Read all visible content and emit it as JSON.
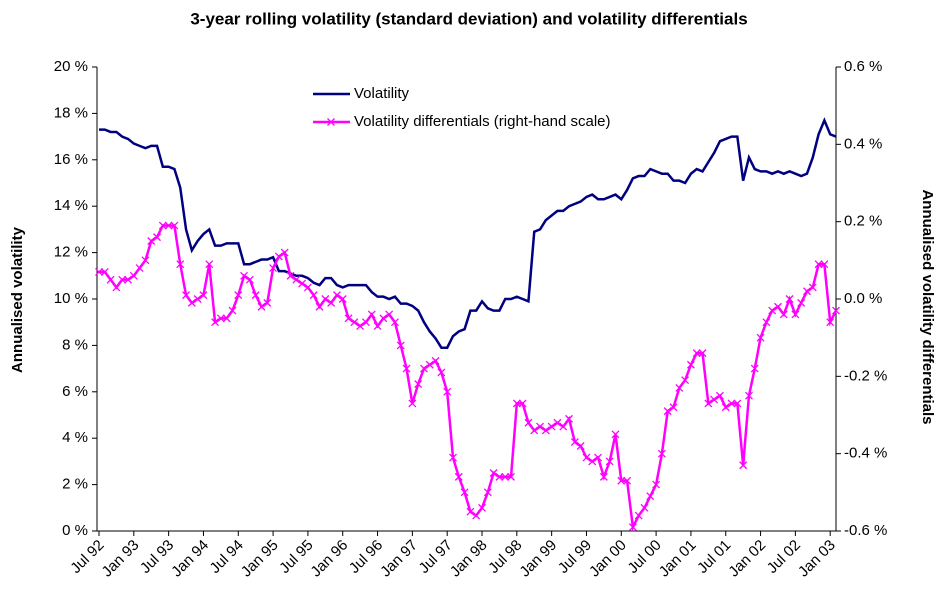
{
  "chart_data": {
    "type": "line",
    "title": "3-year rolling volatility (standard deviation) and volatility differentials",
    "y_label": "Annualised volatility",
    "y2_label": "Annualised volatility differentials",
    "categories": [
      "Jul 92",
      null,
      null,
      null,
      null,
      null,
      "Jan 93",
      null,
      null,
      null,
      null,
      null,
      "Jul 93",
      null,
      null,
      null,
      null,
      null,
      "Jan 94",
      null,
      null,
      null,
      null,
      null,
      "Jul 94",
      null,
      null,
      null,
      null,
      null,
      "Jan 95",
      null,
      null,
      null,
      null,
      null,
      "Jul 95",
      null,
      null,
      null,
      null,
      null,
      "Jan 96",
      null,
      null,
      null,
      null,
      null,
      "Jul 96",
      null,
      null,
      null,
      null,
      null,
      "Jan 97",
      null,
      null,
      null,
      null,
      null,
      "Jul 97",
      null,
      null,
      null,
      null,
      null,
      "Jan 98",
      null,
      null,
      null,
      null,
      null,
      "Jul 98",
      null,
      null,
      null,
      null,
      null,
      "Jan 99",
      null,
      null,
      null,
      null,
      null,
      "Jul 99",
      null,
      null,
      null,
      null,
      null,
      "Jan 00",
      null,
      null,
      null,
      null,
      null,
      "Jul 00",
      null,
      null,
      null,
      null,
      null,
      "Jan 01",
      null,
      null,
      null,
      null,
      null,
      "Jul 01",
      null,
      null,
      null,
      null,
      null,
      "Jan 02",
      null,
      null,
      null,
      null,
      null,
      "Jul 02",
      null,
      null,
      null,
      null,
      null,
      "Jan 03",
      null
    ],
    "series": [
      {
        "name": "Volatility",
        "color": "#000080",
        "values": [
          17.3,
          17.3,
          17.2,
          17.2,
          17.0,
          16.9,
          16.7,
          16.6,
          16.5,
          16.6,
          16.6,
          15.7,
          15.7,
          15.6,
          14.8,
          13.0,
          12.1,
          12.5,
          12.8,
          13.0,
          12.3,
          12.3,
          12.4,
          12.4,
          12.4,
          11.5,
          11.5,
          11.6,
          11.7,
          11.7,
          11.8,
          11.2,
          11.2,
          11.1,
          11.0,
          11.0,
          10.9,
          10.7,
          10.6,
          10.9,
          10.9,
          10.6,
          10.5,
          10.6,
          10.6,
          10.6,
          10.6,
          10.3,
          10.1,
          10.1,
          10.0,
          10.1,
          9.8,
          9.8,
          9.7,
          9.5,
          9.0,
          8.6,
          8.3,
          7.9,
          7.9,
          8.4,
          8.6,
          8.7,
          9.5,
          9.5,
          9.9,
          9.6,
          9.5,
          9.5,
          10.0,
          10.0,
          10.1,
          10.0,
          9.9,
          12.9,
          13.0,
          13.4,
          13.6,
          13.8,
          13.8,
          14.0,
          14.1,
          14.2,
          14.4,
          14.5,
          14.3,
          14.3,
          14.4,
          14.5,
          14.3,
          14.7,
          15.2,
          15.3,
          15.3,
          15.6,
          15.5,
          15.4,
          15.4,
          15.1,
          15.1,
          15.0,
          15.4,
          15.6,
          15.5,
          15.9,
          16.3,
          16.8,
          16.9,
          17.0,
          17.0,
          15.1,
          16.1,
          15.6,
          15.5,
          15.5,
          15.4,
          15.5,
          15.4,
          15.5,
          15.4,
          15.3,
          15.4,
          16.1,
          17.1,
          17.7,
          17.1,
          17.0
        ]
      },
      {
        "name": "Volatility differentials (right-hand scale)",
        "color": "#ff00ff",
        "axis": "y2",
        "values": [
          0.07,
          0.07,
          0.05,
          0.03,
          0.05,
          0.05,
          0.06,
          0.08,
          0.1,
          0.15,
          0.16,
          0.19,
          0.19,
          0.19,
          0.09,
          0.01,
          -0.01,
          0.0,
          0.01,
          0.09,
          -0.06,
          -0.05,
          -0.05,
          -0.03,
          0.01,
          0.06,
          0.05,
          0.01,
          -0.02,
          -0.01,
          0.08,
          0.11,
          0.12,
          0.06,
          0.05,
          0.04,
          0.03,
          0.01,
          -0.02,
          0.0,
          -0.01,
          0.01,
          0.0,
          -0.05,
          -0.06,
          -0.07,
          -0.06,
          -0.04,
          -0.07,
          -0.05,
          -0.04,
          -0.06,
          -0.12,
          -0.18,
          -0.27,
          -0.22,
          -0.18,
          -0.17,
          -0.16,
          -0.19,
          -0.24,
          -0.41,
          -0.46,
          -0.5,
          -0.55,
          -0.56,
          -0.54,
          -0.5,
          -0.45,
          -0.46,
          -0.46,
          -0.46,
          -0.27,
          -0.27,
          -0.32,
          -0.34,
          -0.33,
          -0.34,
          -0.33,
          -0.32,
          -0.33,
          -0.31,
          -0.37,
          -0.38,
          -0.41,
          -0.42,
          -0.41,
          -0.46,
          -0.42,
          -0.35,
          -0.47,
          -0.47,
          -0.59,
          -0.56,
          -0.54,
          -0.51,
          -0.48,
          -0.4,
          -0.29,
          -0.28,
          -0.23,
          -0.21,
          -0.17,
          -0.14,
          -0.14,
          -0.27,
          -0.26,
          -0.25,
          -0.28,
          -0.27,
          -0.27,
          -0.43,
          -0.25,
          -0.18,
          -0.1,
          -0.06,
          -0.03,
          -0.02,
          -0.04,
          0.0,
          -0.04,
          -0.01,
          0.02,
          0.03,
          0.09,
          0.09,
          -0.06,
          -0.03
        ]
      }
    ],
    "ylim": [
      0,
      20
    ],
    "yticks": [
      {
        "value": 0,
        "label": "0 %"
      },
      {
        "value": 2,
        "label": "2 %"
      },
      {
        "value": 4,
        "label": "4 %"
      },
      {
        "value": 6,
        "label": "6 %"
      },
      {
        "value": 8,
        "label": "8 %"
      },
      {
        "value": 10,
        "label": "10 %"
      },
      {
        "value": 12,
        "label": "12 %"
      },
      {
        "value": 14,
        "label": "14 %"
      },
      {
        "value": 16,
        "label": "16 %"
      },
      {
        "value": 18,
        "label": "18 %"
      },
      {
        "value": 20,
        "label": "20 %"
      }
    ],
    "y2lim": [
      -0.6,
      0.6
    ],
    "y2ticks": [
      {
        "value": -0.6,
        "label": "-0.6 %"
      },
      {
        "value": -0.4,
        "label": "-0.4 %"
      },
      {
        "value": -0.2,
        "label": "-0.2 %"
      },
      {
        "value": 0.0,
        "label": "0.0 %"
      },
      {
        "value": 0.2,
        "label": "0.2 %"
      },
      {
        "value": 0.4,
        "label": "0.4 %"
      },
      {
        "value": 0.6,
        "label": "0.6 %"
      }
    ]
  }
}
